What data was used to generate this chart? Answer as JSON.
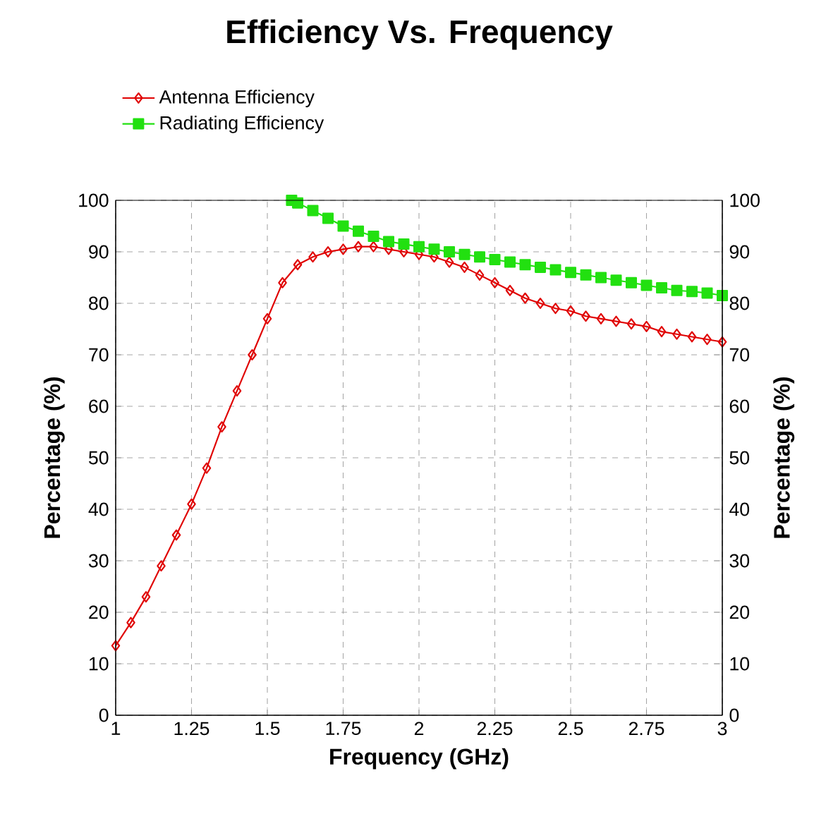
{
  "chart_data": {
    "type": "line",
    "title": "Efficiency Vs. Frequency",
    "xlabel": "Frequency (GHz)",
    "ylabel": "Percentage (%)",
    "y2label": "Percentage (%)",
    "xlim": [
      1,
      3
    ],
    "xticks": [
      1,
      1.25,
      1.5,
      1.75,
      2,
      2.25,
      2.5,
      2.75,
      3
    ],
    "ylim": [
      0,
      100
    ],
    "yticks": [
      0,
      10,
      20,
      30,
      40,
      50,
      60,
      70,
      80,
      90,
      100
    ],
    "y2lim": [
      0,
      100
    ],
    "y2ticks": [
      0,
      10,
      20,
      30,
      40,
      50,
      60,
      70,
      80,
      90,
      100
    ],
    "grid": true,
    "legend": "top left",
    "series": [
      {
        "name": "Antenna Efficiency",
        "color": "#e00000",
        "marker": "diamond",
        "x": [
          1.0,
          1.05,
          1.1,
          1.15,
          1.2,
          1.25,
          1.3,
          1.35,
          1.4,
          1.45,
          1.5,
          1.55,
          1.6,
          1.65,
          1.7,
          1.75,
          1.8,
          1.85,
          1.9,
          1.95,
          2.0,
          2.05,
          2.1,
          2.15,
          2.2,
          2.25,
          2.3,
          2.35,
          2.4,
          2.45,
          2.5,
          2.55,
          2.6,
          2.65,
          2.7,
          2.75,
          2.8,
          2.85,
          2.9,
          2.95,
          3.0
        ],
        "values": [
          13.5,
          18,
          23,
          29,
          35,
          41,
          48,
          56,
          63,
          70,
          77,
          84,
          87.5,
          89,
          90,
          90.5,
          91,
          91,
          90.5,
          90,
          89.5,
          89,
          88,
          87,
          85.5,
          84,
          82.5,
          81,
          80,
          79,
          78.5,
          77.5,
          77,
          76.5,
          76,
          75.5,
          74.5,
          74,
          73.5,
          73,
          72.5
        ]
      },
      {
        "name": "Radiating Efficiency",
        "color": "#22e010",
        "marker": "square",
        "x": [
          1.58,
          1.6,
          1.65,
          1.7,
          1.75,
          1.8,
          1.85,
          1.9,
          1.95,
          2.0,
          2.05,
          2.1,
          2.15,
          2.2,
          2.25,
          2.3,
          2.35,
          2.4,
          2.45,
          2.5,
          2.55,
          2.6,
          2.65,
          2.7,
          2.75,
          2.8,
          2.85,
          2.9,
          2.95,
          3.0
        ],
        "values": [
          100,
          99.5,
          98,
          96.5,
          95,
          94,
          93,
          92,
          91.5,
          91,
          90.5,
          90,
          89.5,
          89,
          88.5,
          88,
          87.5,
          87,
          86.5,
          86,
          85.5,
          85,
          84.5,
          84,
          83.5,
          83,
          82.5,
          82.3,
          82,
          81.5
        ]
      }
    ]
  }
}
